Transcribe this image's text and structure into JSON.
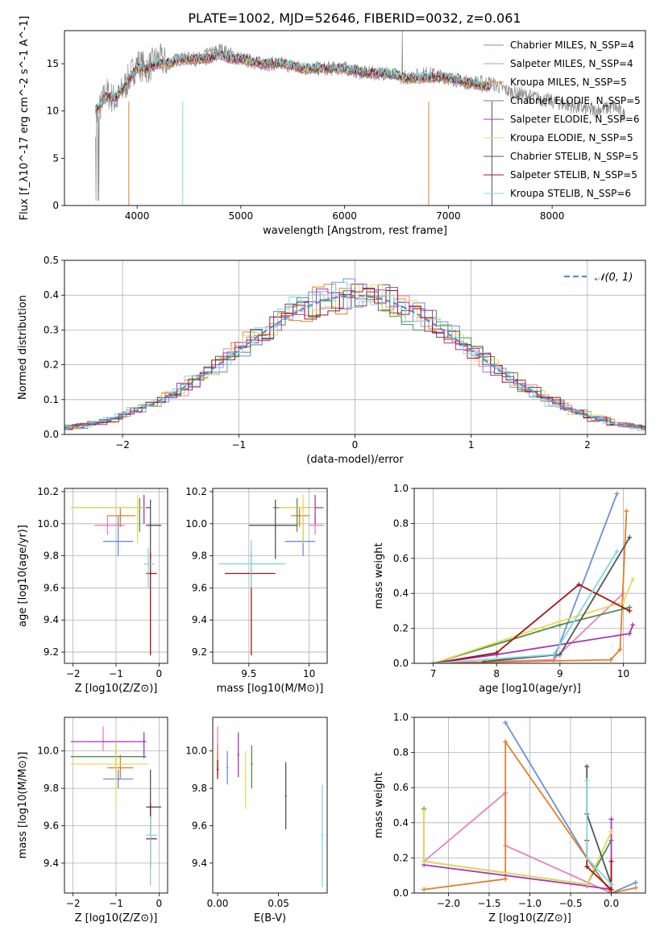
{
  "figure": {
    "title": "PLATE=1002, MJD=52646, FIBERID=0032, z=0.061"
  },
  "colors": [
    "#6a8fd8",
    "#e883b9",
    "#e0802a",
    "#4d9147",
    "#a537b8",
    "#e8d95a",
    "#555555",
    "#a51418",
    "#7fd8df"
  ],
  "chart_data": [
    {
      "id": "spectrum",
      "type": "line",
      "xlabel": "wavelength [Angstrom, rest frame]",
      "ylabel": "Flux [f_λ10^-17 erg cm^-2 s^-1 A^-1]",
      "xlim": [
        3300,
        8900
      ],
      "ylim": [
        0,
        18.5
      ],
      "xticks": [
        4000,
        5000,
        6000,
        7000,
        8000
      ],
      "yticks": [
        0,
        5,
        10,
        15
      ],
      "legend_position": "top-right",
      "observed": {
        "color": "#888888",
        "x": [
          3600,
          3700,
          3800,
          3900,
          4000,
          4100,
          4200,
          4300,
          4400,
          4500,
          4600,
          4700,
          4800,
          4900,
          5000,
          5200,
          5400,
          5600,
          5800,
          6000,
          6200,
          6400,
          6600,
          6800,
          7000,
          7200,
          7400,
          7600,
          7800,
          8000,
          8200,
          8400,
          8600,
          8700
        ],
        "y": [
          9,
          12,
          11,
          13,
          15,
          14.5,
          15.5,
          15,
          15.5,
          15.5,
          15.5,
          16,
          16.5,
          16,
          15.5,
          15,
          15,
          14.5,
          14.5,
          14.5,
          14,
          14,
          13.5,
          14,
          13.5,
          13,
          13,
          12,
          11.5,
          11,
          10.5,
          10,
          10.5,
          9.5
        ]
      },
      "series": [
        {
          "name": "Chabrier MILES, N_SSP=4"
        },
        {
          "name": "Salpeter MILES, N_SSP=4"
        },
        {
          "name": "Kroupa MILES, N_SSP=5"
        },
        {
          "name": "Chabrier ELODIE, N_SSP=5"
        },
        {
          "name": "Salpeter ELODIE, N_SSP=6"
        },
        {
          "name": "Kroupa ELODIE, N_SSP=5"
        },
        {
          "name": "Chabrier STELIB, N_SSP=5"
        },
        {
          "name": "Salpeter STELIB, N_SSP=5"
        },
        {
          "name": "Kroupa STELIB, N_SSP=6"
        }
      ],
      "model_x": [
        3600,
        3700,
        3800,
        3900,
        4000,
        4100,
        4200,
        4300,
        4400,
        4500,
        4600,
        4700,
        4800,
        4900,
        5000,
        5200,
        5400,
        5600,
        5800,
        6000,
        6200,
        6400,
        6600,
        6800,
        7000,
        7200,
        7400
      ],
      "model_y": [
        10,
        11.5,
        11.5,
        13,
        14.5,
        14.5,
        15,
        15,
        15.5,
        15.5,
        15.5,
        15.5,
        16,
        15.5,
        15.5,
        15,
        15,
        14.5,
        14.5,
        14.5,
        14,
        14,
        13.5,
        13.5,
        13.5,
        13,
        12.5
      ]
    },
    {
      "id": "residuals",
      "type": "line",
      "xlabel": "(data-model)/error",
      "ylabel": "Normed distribution",
      "xlim": [
        -2.5,
        2.5
      ],
      "ylim": [
        0,
        0.5
      ],
      "xticks": [
        -2,
        -1,
        0,
        1,
        2
      ],
      "yticks": [
        0,
        0.1,
        0.2,
        0.3,
        0.4,
        0.5
      ],
      "grid": true,
      "legend": "𝒩(0, 1)",
      "legend_position": "top-right",
      "gaussian": {
        "mean": 0,
        "sigma": 1,
        "color": "#5b8bd6"
      }
    },
    {
      "id": "age-vs-Z",
      "type": "scatter",
      "xlabel": "Z [log10(Z/Z⊙)]",
      "ylabel": "age  [log10(age/yr)]",
      "xlim": [
        -2.2,
        0.2
      ],
      "ylim": [
        9.13,
        10.22
      ],
      "xticks": [
        -2,
        -1,
        0
      ],
      "yticks": [
        9.2,
        9.4,
        9.6,
        9.8,
        10.0,
        10.2
      ],
      "grid": true,
      "points": [
        {
          "s": 0,
          "x": -0.95,
          "y": 9.89,
          "xe": [
            -1.3,
            -0.6
          ],
          "ye": [
            9.8,
            10.05
          ]
        },
        {
          "s": 1,
          "x": -1.2,
          "y": 9.99,
          "xe": [
            -1.5,
            -0.8
          ],
          "ye": [
            9.93,
            10.05
          ]
        },
        {
          "s": 2,
          "x": -0.9,
          "y": 10.05,
          "xe": [
            -1.2,
            -0.55
          ],
          "ye": [
            9.98,
            10.1
          ]
        },
        {
          "s": 3,
          "x": -0.45,
          "y": 10.1,
          "xe": [
            -2.05,
            -0.2
          ],
          "ye": [
            9.95,
            10.16
          ]
        },
        {
          "s": 4,
          "x": -0.35,
          "y": 10.1,
          "xe": [
            -0.45,
            -0.2
          ],
          "ye": [
            10.0,
            10.18
          ]
        },
        {
          "s": 5,
          "x": -0.5,
          "y": 10.1,
          "xe": [
            -2.05,
            -0.3
          ],
          "ye": [
            9.88,
            10.18
          ]
        },
        {
          "s": 6,
          "x": -0.2,
          "y": 9.99,
          "xe": [
            -0.3,
            0.05
          ],
          "ye": [
            9.78,
            10.15
          ]
        },
        {
          "s": 7,
          "x": -0.2,
          "y": 9.69,
          "xe": [
            -0.3,
            -0.05
          ],
          "ye": [
            9.18,
            9.82
          ]
        },
        {
          "s": 8,
          "x": -0.25,
          "y": 9.75,
          "xe": [
            -0.35,
            -0.1
          ],
          "ye": [
            9.6,
            9.85
          ]
        }
      ]
    },
    {
      "id": "age-vs-mass",
      "type": "scatter",
      "xlabel": "mass [log10(M/M⊙)]",
      "ylabel": "",
      "xlim": [
        9.2,
        10.15
      ],
      "ylim": [
        9.13,
        10.22
      ],
      "xticks": [
        9.5,
        10.0
      ],
      "yticks": [
        9.2,
        9.4,
        9.6,
        9.8,
        10.0,
        10.2
      ],
      "grid": true,
      "points": [
        {
          "s": 0,
          "x": 9.95,
          "y": 9.89,
          "xe": [
            9.8,
            10.05
          ],
          "ye": [
            9.8,
            10.05
          ]
        },
        {
          "s": 1,
          "x": 10.05,
          "y": 9.99,
          "xe": [
            10.0,
            10.12
          ],
          "ye": [
            9.93,
            10.05
          ]
        },
        {
          "s": 2,
          "x": 9.92,
          "y": 10.05,
          "xe": [
            9.85,
            10.0
          ],
          "ye": [
            9.98,
            10.1
          ]
        },
        {
          "s": 3,
          "x": 9.9,
          "y": 10.1,
          "xe": [
            9.7,
            10.05
          ],
          "ye": [
            9.95,
            10.16
          ]
        },
        {
          "s": 4,
          "x": 10.05,
          "y": 10.1,
          "xe": [
            9.98,
            10.12
          ],
          "ye": [
            10.0,
            10.18
          ]
        },
        {
          "s": 5,
          "x": 9.95,
          "y": 10.1,
          "xe": [
            9.75,
            10.05
          ],
          "ye": [
            9.88,
            10.18
          ]
        },
        {
          "s": 6,
          "x": 9.72,
          "y": 9.99,
          "xe": [
            9.5,
            9.9
          ],
          "ye": [
            9.78,
            10.15
          ]
        },
        {
          "s": 7,
          "x": 9.52,
          "y": 9.69,
          "xe": [
            9.3,
            9.72
          ],
          "ye": [
            9.18,
            9.82
          ]
        },
        {
          "s": 8,
          "x": 9.52,
          "y": 9.75,
          "xe": [
            9.25,
            9.8
          ],
          "ye": [
            9.6,
            9.9
          ]
        }
      ]
    },
    {
      "id": "weight-vs-age",
      "type": "line",
      "xlabel": "age  [log10(age/yr)]",
      "ylabel": "mass weight",
      "xlim": [
        6.7,
        10.35
      ],
      "ylim": [
        0,
        1.0
      ],
      "xticks": [
        7,
        8,
        9,
        10
      ],
      "yticks": [
        0,
        0.2,
        0.4,
        0.6,
        0.8,
        1.0
      ],
      "grid": true,
      "series": [
        {
          "s": 0,
          "x": [
            7.0,
            8.9,
            9.9
          ],
          "y": [
            0.0,
            0.02,
            0.97
          ]
        },
        {
          "s": 1,
          "x": [
            7.0,
            8.9,
            10.0
          ],
          "y": [
            0.0,
            0.02,
            0.4
          ]
        },
        {
          "s": 2,
          "x": [
            7.0,
            9.8,
            9.95,
            10.05
          ],
          "y": [
            0.0,
            0.02,
            0.08,
            0.87
          ]
        },
        {
          "s": 3,
          "x": [
            7.0,
            9.0,
            10.1
          ],
          "y": [
            0.0,
            0.22,
            0.32
          ]
        },
        {
          "s": 4,
          "x": [
            7.0,
            8.0,
            10.1,
            10.15
          ],
          "y": [
            0.0,
            0.05,
            0.17,
            0.22
          ]
        },
        {
          "s": 5,
          "x": [
            7.0,
            9.0,
            10.0,
            10.15
          ],
          "y": [
            0.0,
            0.24,
            0.35,
            0.48
          ]
        },
        {
          "s": 6,
          "x": [
            7.8,
            9.0,
            10.1
          ],
          "y": [
            0.01,
            0.05,
            0.72
          ]
        },
        {
          "s": 7,
          "x": [
            7.0,
            8.0,
            9.3,
            10.1
          ],
          "y": [
            0.0,
            0.06,
            0.45,
            0.3
          ]
        },
        {
          "s": 8,
          "x": [
            7.0,
            8.9,
            9.9
          ],
          "y": [
            0.0,
            0.05,
            0.64
          ]
        }
      ]
    },
    {
      "id": "mass-vs-Z",
      "type": "scatter",
      "xlabel": "Z [log10(Z/Z⊙)]",
      "ylabel": "mass [log10(M/M⊙)]",
      "xlim": [
        -2.2,
        0.2
      ],
      "ylim": [
        9.24,
        10.18
      ],
      "xticks": [
        -2,
        -1,
        0
      ],
      "yticks": [
        9.4,
        9.6,
        9.8,
        10.0
      ],
      "grid": true,
      "points": [
        {
          "s": 0,
          "x": -0.95,
          "y": 9.85,
          "xe": [
            -1.3,
            -0.6
          ],
          "ye": [
            9.8,
            9.9
          ]
        },
        {
          "s": 1,
          "x": -1.3,
          "y": 10.05,
          "xe": [
            -1.6,
            -0.7
          ],
          "ye": [
            10.0,
            10.13
          ]
        },
        {
          "s": 2,
          "x": -0.9,
          "y": 9.91,
          "xe": [
            -1.2,
            -0.6
          ],
          "ye": [
            9.85,
            9.98
          ]
        },
        {
          "s": 3,
          "x": -1.0,
          "y": 9.97,
          "xe": [
            -2.05,
            -0.3
          ],
          "ye": [
            9.85,
            10.05
          ]
        },
        {
          "s": 4,
          "x": -0.35,
          "y": 10.05,
          "xe": [
            -2.05,
            -0.3
          ],
          "ye": [
            9.96,
            10.1
          ]
        },
        {
          "s": 5,
          "x": -1.0,
          "y": 9.93,
          "xe": [
            -2.05,
            -0.25
          ],
          "ye": [
            9.7,
            10.05
          ]
        },
        {
          "s": 6,
          "x": -0.2,
          "y": 9.7,
          "xe": [
            -0.3,
            0.05
          ],
          "ye": [
            9.55,
            9.9
          ]
        },
        {
          "s": 7,
          "x": -0.2,
          "y": 9.53,
          "xe": [
            -0.3,
            -0.05
          ],
          "ye": [
            9.38,
            9.72
          ]
        },
        {
          "s": 8,
          "x": -0.2,
          "y": 9.55,
          "xe": [
            -0.3,
            -0.05
          ],
          "ye": [
            9.28,
            9.65
          ]
        }
      ]
    },
    {
      "id": "mass-vs-ebv",
      "type": "scatter",
      "xlabel": "E(B-V)",
      "ylabel": "",
      "xlim": [
        -0.004,
        0.09
      ],
      "ylim": [
        9.24,
        10.18
      ],
      "xticks": [
        0.0,
        0.05
      ],
      "yticks": [
        9.4,
        9.6,
        9.8,
        10.0
      ],
      "grid": false,
      "points": [
        {
          "s": 0,
          "x": 0.008,
          "y": 9.91,
          "ye": [
            9.82,
            10.0
          ]
        },
        {
          "s": 1,
          "x": 0.0,
          "y": 10.03,
          "ye": [
            9.9,
            10.13
          ]
        },
        {
          "s": 2,
          "x": 0.0,
          "y": 9.95,
          "ye": [
            9.87,
            10.02
          ]
        },
        {
          "s": 3,
          "x": 0.028,
          "y": 9.93,
          "ye": [
            9.8,
            10.03
          ]
        },
        {
          "s": 4,
          "x": 0.017,
          "y": 9.98,
          "ye": [
            9.86,
            10.1
          ]
        },
        {
          "s": 5,
          "x": 0.023,
          "y": 9.86,
          "ye": [
            9.69,
            10.0
          ]
        },
        {
          "s": 6,
          "x": 0.056,
          "y": 9.76,
          "ye": [
            9.58,
            9.94
          ]
        },
        {
          "s": 7,
          "x": 0.0,
          "y": 9.9,
          "ye": [
            9.85,
            9.95
          ]
        },
        {
          "s": 8,
          "x": 0.086,
          "y": 9.55,
          "ye": [
            9.27,
            9.82
          ]
        }
      ]
    },
    {
      "id": "weight-vs-Z",
      "type": "line",
      "xlabel": "Z [log10(Z/Z⊙)]",
      "ylabel": "mass weight",
      "xlim": [
        -2.42,
        0.42
      ],
      "ylim": [
        0,
        1.0
      ],
      "xticks": [
        -2.0,
        -1.5,
        -1.0,
        -0.5,
        0.0
      ],
      "yticks": [
        0,
        0.2,
        0.4,
        0.6,
        0.8,
        1.0
      ],
      "grid": true,
      "series": [
        {
          "s": 0,
          "x": [
            -1.3,
            -0.3,
            0.0,
            0.3
          ],
          "y": [
            0.97,
            0.2,
            0.0,
            0.06
          ]
        },
        {
          "s": 1,
          "x": [
            -2.3,
            -1.3,
            -1.3,
            0.0
          ],
          "y": [
            0.18,
            0.57,
            0.27,
            0.0
          ]
        },
        {
          "s": 2,
          "x": [
            -2.3,
            -1.3,
            -1.3,
            0.0,
            0.3
          ],
          "y": [
            0.02,
            0.08,
            0.86,
            0.0,
            0.03
          ]
        },
        {
          "s": 3,
          "x": [
            -2.3,
            -2.3,
            -0.3,
            0.0
          ],
          "y": [
            0.48,
            0.18,
            0.05,
            0.3
          ]
        },
        {
          "s": 4,
          "x": [
            -2.3,
            -0.3,
            0.0,
            0.0
          ],
          "y": [
            0.16,
            0.04,
            0.02,
            0.42
          ]
        },
        {
          "s": 5,
          "x": [
            -2.3,
            -2.3,
            -0.3,
            0.0
          ],
          "y": [
            0.47,
            0.18,
            0.05,
            0.35
          ]
        },
        {
          "s": 6,
          "x": [
            -0.3,
            -0.3,
            0.0
          ],
          "y": [
            0.72,
            0.45,
            0.05
          ]
        },
        {
          "s": 7,
          "x": [
            -0.3,
            -0.3,
            0.0,
            0.0
          ],
          "y": [
            0.3,
            0.15,
            0.02,
            0.18
          ]
        },
        {
          "s": 8,
          "x": [
            -0.3,
            -0.3,
            0.0
          ],
          "y": [
            0.64,
            0.2,
            0.05
          ]
        }
      ]
    }
  ]
}
